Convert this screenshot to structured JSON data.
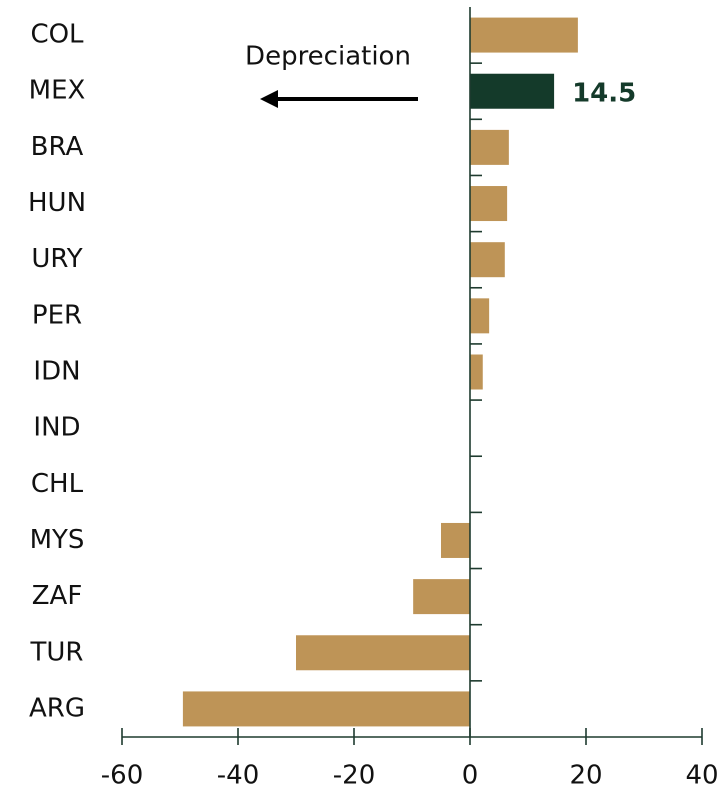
{
  "chart_data": {
    "type": "barh",
    "categories": [
      "COL",
      "MEX",
      "BRA",
      "HUN",
      "URY",
      "PER",
      "IDN",
      "IND",
      "CHL",
      "MYS",
      "ZAF",
      "TUR",
      "ARG"
    ],
    "values": [
      18.6,
      14.5,
      6.7,
      6.4,
      6.0,
      3.3,
      2.2,
      0,
      0,
      -5.0,
      -9.8,
      -30.0,
      -49.5
    ],
    "colors": [
      "#be9457",
      "#143a2a",
      "#be9457",
      "#be9457",
      "#be9457",
      "#be9457",
      "#be9457",
      "#be9457",
      "#be9457",
      "#be9457",
      "#be9457",
      "#be9457",
      "#be9457"
    ],
    "show_value_label": [
      false,
      true,
      false,
      false,
      false,
      false,
      false,
      false,
      false,
      false,
      false,
      false,
      false
    ],
    "annotation": "Depreciation",
    "xlim": [
      -60,
      40
    ],
    "xticks": [
      -60,
      -40,
      -20,
      0,
      20,
      40
    ]
  }
}
